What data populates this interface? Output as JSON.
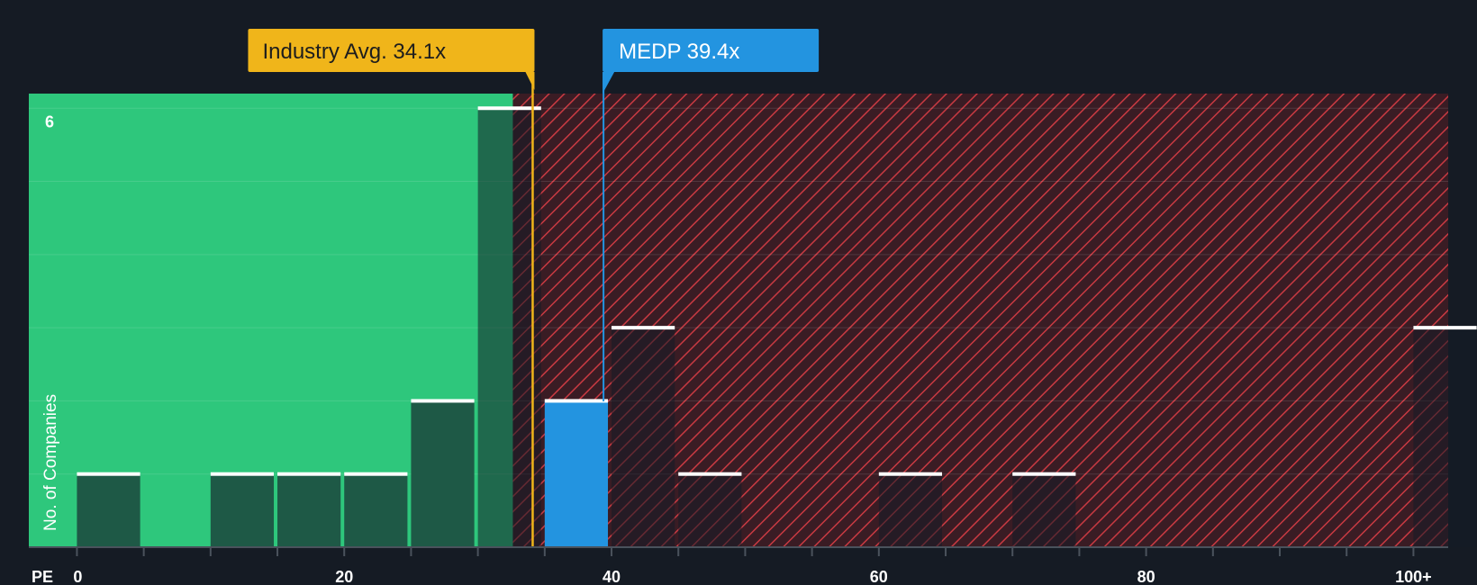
{
  "chart_data": {
    "type": "bar",
    "xlabel": "PE",
    "ylabel": "No. of Companies",
    "x_ticks": [
      {
        "value": 0,
        "label": "0"
      },
      {
        "value": 20,
        "label": "20"
      },
      {
        "value": 40,
        "label": "40"
      },
      {
        "value": 60,
        "label": "60"
      },
      {
        "value": 80,
        "label": "80"
      },
      {
        "value": 100,
        "label": "100+"
      }
    ],
    "y_ticks": [
      {
        "value": 6,
        "label": "6"
      }
    ],
    "xlim": [
      -3.6,
      102.6
    ],
    "ylim": [
      0,
      6.2
    ],
    "bin_width": 5,
    "bins": [
      {
        "start": 0,
        "count": 1
      },
      {
        "start": 5,
        "count": 0
      },
      {
        "start": 10,
        "count": 1
      },
      {
        "start": 15,
        "count": 1
      },
      {
        "start": 20,
        "count": 1
      },
      {
        "start": 25,
        "count": 2
      },
      {
        "start": 30,
        "count": 6
      },
      {
        "start": 35,
        "count": 2,
        "highlight": true
      },
      {
        "start": 40,
        "count": 3
      },
      {
        "start": 45,
        "count": 1
      },
      {
        "start": 60,
        "count": 1
      },
      {
        "start": 70,
        "count": 1
      },
      {
        "start": 100,
        "count": 3
      }
    ],
    "industry_avg": {
      "value": 34.1,
      "label": "Industry Avg. 34.1x"
    },
    "company": {
      "ticker": "MEDP",
      "value": 39.4,
      "label": "MEDP 39.4x"
    },
    "colors": {
      "background": "#151b24",
      "undervalued_zone": "#2ec77c",
      "overvalued_zone": "#3a1c24",
      "hatch": "#c93a42",
      "bar_fill": "#1e5946",
      "bar_cap": "#ffffff",
      "company_bar": "#2394e0",
      "industry_callout": "#f0b51a",
      "company_callout": "#2394e0"
    }
  }
}
